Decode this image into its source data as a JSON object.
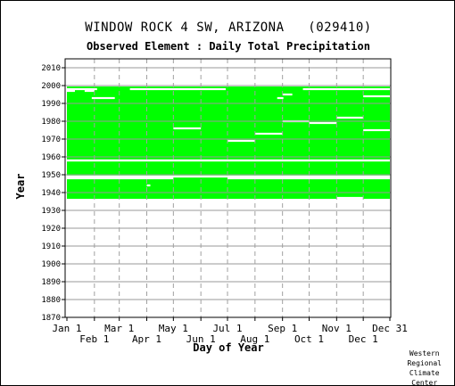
{
  "chart_data": {
    "type": "heatmap",
    "title": "WINDOW ROCK 4 SW, ARIZONA   (029410)",
    "subtitle": "Observed Element : Daily Total Precipitation",
    "xlabel": "Day of Year",
    "ylabel": "Year",
    "x_ticks_top_row": [
      "Jan 1",
      "Mar 1",
      "May 1",
      "Jul 1",
      "Sep 1",
      "Nov 1",
      "Dec 31"
    ],
    "x_ticks_bottom_row": [
      "Feb 1",
      "Apr 1",
      "Jun 1",
      "Aug 1",
      "Oct 1",
      "Dec 1"
    ],
    "x_tick_days_top_row": [
      1,
      60,
      121,
      182,
      244,
      305,
      365
    ],
    "x_tick_days_bottom_row": [
      32,
      91,
      152,
      213,
      274,
      335
    ],
    "y_ticks": [
      1870,
      1880,
      1890,
      1900,
      1910,
      1920,
      1930,
      1940,
      1950,
      1960,
      1970,
      1980,
      1990,
      2000,
      2010
    ],
    "xlim": [
      1,
      365
    ],
    "ylim": [
      1870,
      2010
    ],
    "grid": true,
    "data_color": "#00ff00",
    "record_blocks": [
      {
        "start_year": 1936.5,
        "end_year": 1999.5,
        "start_day": 1,
        "end_day": 365
      }
    ],
    "missing_year_rows": [
      1958,
      1949
    ],
    "missing_segments": [
      {
        "year": 1998,
        "start_day": 1,
        "end_day": 35
      },
      {
        "year": 1998,
        "start_day": 72,
        "end_day": 180
      },
      {
        "year": 1998,
        "start_day": 267,
        "end_day": 365
      },
      {
        "year": 1997,
        "start_day": 1,
        "end_day": 10
      },
      {
        "year": 1997,
        "start_day": 21,
        "end_day": 32
      },
      {
        "year": 1995,
        "start_day": 244,
        "end_day": 255
      },
      {
        "year": 1994,
        "start_day": 335,
        "end_day": 365
      },
      {
        "year": 1993,
        "start_day": 29,
        "end_day": 55
      },
      {
        "year": 1993,
        "start_day": 238,
        "end_day": 245
      },
      {
        "year": 1982,
        "start_day": 305,
        "end_day": 335
      },
      {
        "year": 1980,
        "start_day": 244,
        "end_day": 274
      },
      {
        "year": 1979,
        "start_day": 274,
        "end_day": 305
      },
      {
        "year": 1976,
        "start_day": 121,
        "end_day": 152
      },
      {
        "year": 1975,
        "start_day": 335,
        "end_day": 365
      },
      {
        "year": 1973,
        "start_day": 213,
        "end_day": 244
      },
      {
        "year": 1969,
        "start_day": 182,
        "end_day": 213
      },
      {
        "year": 1948,
        "start_day": 1,
        "end_day": 121
      },
      {
        "year": 1948,
        "start_day": 182,
        "end_day": 365
      },
      {
        "year": 1944,
        "start_day": 91,
        "end_day": 95
      },
      {
        "year": 1937,
        "start_day": 305,
        "end_day": 335
      }
    ]
  },
  "credit": [
    "Western",
    "Regional",
    "Climate",
    "Center"
  ]
}
